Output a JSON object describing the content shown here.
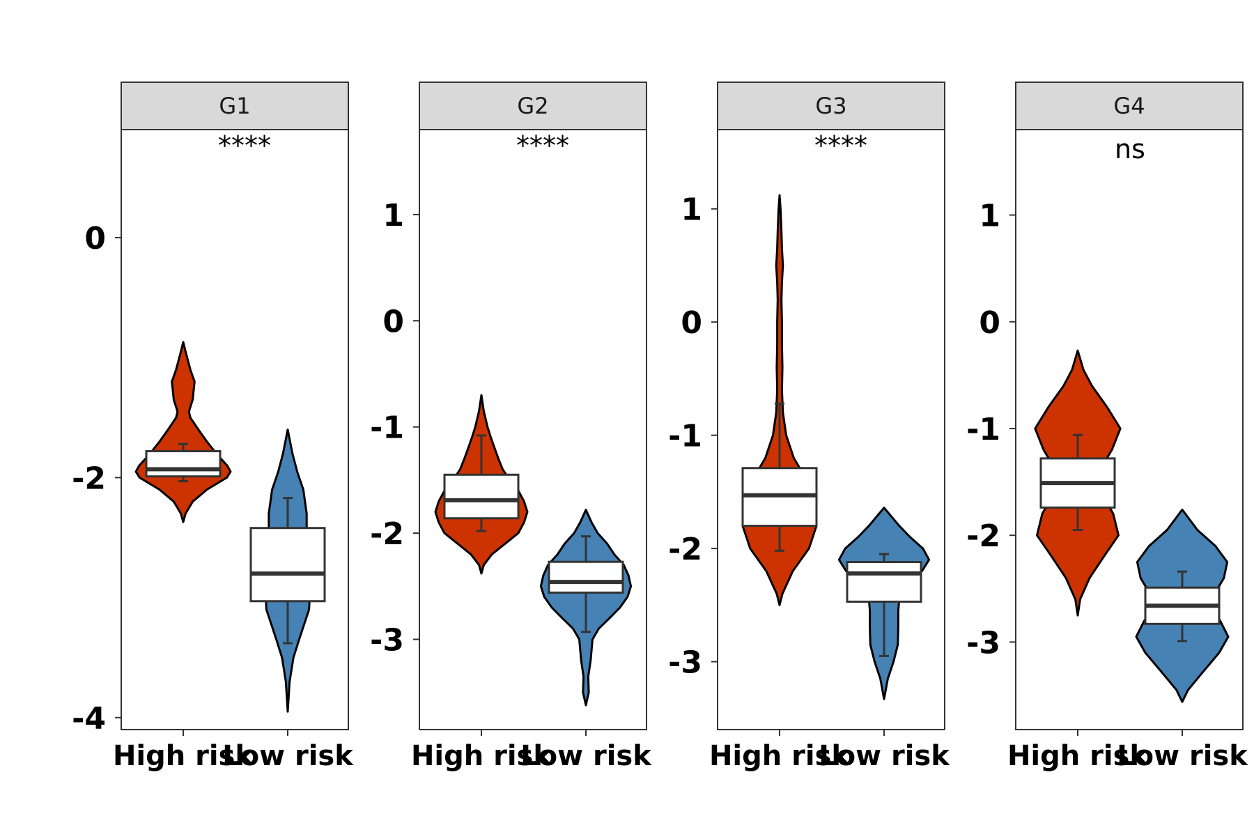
{
  "chart_data": {
    "type": "violin",
    "categories": [
      "High risk",
      "Low risk"
    ],
    "colors": {
      "High risk": "#CC3300",
      "Low risk": "#4682B4"
    },
    "panels": [
      {
        "label": "G1",
        "significance": "****",
        "ylim": [
          -4.1,
          0.9
        ],
        "yticks": [
          0,
          -2,
          -4
        ],
        "groups": [
          {
            "name": "High risk",
            "box": {
              "whisker_low": -2.03,
              "q1": -1.99,
              "median": -1.93,
              "q3": -1.78,
              "whisker_high": -1.72
            },
            "violin_y": [
              -2.37,
              -2.3,
              -2.2,
              -2.1,
              -2.0,
              -1.95,
              -1.9,
              -1.8,
              -1.7,
              -1.6,
              -1.5,
              -1.45,
              -1.35,
              -1.2,
              -1.1,
              -0.95,
              -0.87
            ],
            "violin_w": [
              0.0,
              0.05,
              0.2,
              0.5,
              0.92,
              1.0,
              0.93,
              0.7,
              0.5,
              0.32,
              0.15,
              0.12,
              0.2,
              0.24,
              0.15,
              0.05,
              0.0
            ]
          },
          {
            "name": "Low risk",
            "box": {
              "whisker_low": -3.38,
              "q1": -3.03,
              "median": -2.8,
              "q3": -2.42,
              "whisker_high": -2.17
            },
            "violin_y": [
              -3.95,
              -3.7,
              -3.5,
              -3.35,
              -3.1,
              -2.9,
              -2.7,
              -2.5,
              -2.3,
              -2.1,
              -1.95,
              -1.8,
              -1.6
            ],
            "violin_w": [
              0.0,
              0.04,
              0.12,
              0.24,
              0.45,
              0.48,
              0.42,
              0.4,
              0.4,
              0.33,
              0.2,
              0.1,
              0.0
            ]
          }
        ]
      },
      {
        "label": "G2",
        "significance": "****",
        "ylim": [
          -3.85,
          1.8
        ],
        "yticks": [
          1,
          0,
          -1,
          -2,
          -3
        ],
        "groups": [
          {
            "name": "High risk",
            "box": {
              "whisker_low": -1.98,
              "q1": -1.86,
              "median": -1.69,
              "q3": -1.45,
              "whisker_high": -1.08
            },
            "violin_y": [
              -2.38,
              -2.3,
              -2.2,
              -2.1,
              -2.0,
              -1.9,
              -1.8,
              -1.7,
              -1.6,
              -1.5,
              -1.4,
              -1.3,
              -1.2,
              -1.1,
              -1.0,
              -0.85,
              -0.7
            ],
            "violin_w": [
              0.0,
              0.05,
              0.22,
              0.5,
              0.78,
              0.9,
              0.97,
              0.9,
              0.78,
              0.6,
              0.45,
              0.36,
              0.28,
              0.2,
              0.13,
              0.05,
              0.0
            ]
          },
          {
            "name": "Low risk",
            "box": {
              "whisker_low": -2.93,
              "q1": -2.56,
              "median": -2.46,
              "q3": -2.27,
              "whisker_high": -2.03
            },
            "violin_y": [
              -3.62,
              -3.5,
              -3.35,
              -3.2,
              -3.0,
              -2.9,
              -2.8,
              -2.7,
              -2.6,
              -2.5,
              -2.4,
              -2.3,
              -2.2,
              -2.1,
              -2.0,
              -1.9,
              -1.78
            ],
            "violin_w": [
              0.0,
              0.06,
              0.05,
              0.1,
              0.14,
              0.27,
              0.5,
              0.72,
              0.88,
              0.95,
              0.9,
              0.8,
              0.6,
              0.45,
              0.25,
              0.12,
              0.0
            ]
          }
        ]
      },
      {
        "label": "G3",
        "significance": "****",
        "ylim": [
          -3.6,
          1.7
        ],
        "yticks": [
          1,
          0,
          -1,
          -2,
          -3
        ],
        "groups": [
          {
            "name": "High risk",
            "box": {
              "whisker_low": -2.02,
              "q1": -1.8,
              "median": -1.53,
              "q3": -1.29,
              "whisker_high": -0.72
            },
            "violin_y": [
              -2.5,
              -2.4,
              -2.2,
              -2.0,
              -1.8,
              -1.6,
              -1.4,
              -1.2,
              -1.0,
              -0.8,
              -0.6,
              -0.4,
              -0.2,
              0.0,
              0.2,
              0.35,
              0.5,
              0.65,
              0.8,
              1.0,
              1.12
            ],
            "violin_w": [
              0.0,
              0.06,
              0.28,
              0.62,
              0.78,
              0.75,
              0.58,
              0.3,
              0.14,
              0.07,
              0.05,
              0.06,
              0.05,
              0.05,
              0.04,
              0.05,
              0.07,
              0.05,
              0.04,
              0.02,
              0.0
            ]
          },
          {
            "name": "Low risk",
            "box": {
              "whisker_low": -2.95,
              "q1": -2.47,
              "median": -2.22,
              "q3": -2.12,
              "whisker_high": -2.05
            },
            "violin_y": [
              -3.33,
              -3.15,
              -3.0,
              -2.85,
              -2.7,
              -2.55,
              -2.4,
              -2.3,
              -2.2,
              -2.1,
              -2.0,
              -1.9,
              -1.8,
              -1.64
            ],
            "violin_w": [
              0.0,
              0.08,
              0.2,
              0.29,
              0.3,
              0.3,
              0.33,
              0.5,
              0.8,
              0.95,
              0.82,
              0.55,
              0.32,
              0.0
            ]
          }
        ]
      },
      {
        "label": "G4",
        "significance": "ns",
        "ylim": [
          -3.82,
          1.8
        ],
        "yticks": [
          1,
          0,
          -1,
          -2,
          -3
        ],
        "groups": [
          {
            "name": "High risk",
            "box": {
              "whisker_low": -1.95,
              "q1": -1.74,
              "median": -1.51,
              "q3": -1.28,
              "whisker_high": -1.06
            },
            "violin_y": [
              -2.75,
              -2.6,
              -2.4,
              -2.2,
              -2.0,
              -1.8,
              -1.6,
              -1.4,
              -1.2,
              -1.0,
              -0.8,
              -0.6,
              -0.45,
              -0.27
            ],
            "violin_w": [
              0.0,
              0.05,
              0.25,
              0.55,
              0.86,
              0.75,
              0.5,
              0.45,
              0.72,
              0.9,
              0.62,
              0.3,
              0.12,
              0.0
            ]
          },
          {
            "name": "Low risk",
            "box": {
              "whisker_low": -2.99,
              "q1": -2.83,
              "median": -2.66,
              "q3": -2.49,
              "whisker_high": -2.34
            },
            "violin_y": [
              -3.56,
              -3.45,
              -3.3,
              -3.1,
              -2.95,
              -2.8,
              -2.66,
              -2.55,
              -2.4,
              -2.25,
              -2.1,
              -1.95,
              -1.76
            ],
            "violin_w": [
              0.0,
              0.12,
              0.4,
              0.78,
              0.97,
              0.8,
              0.6,
              0.68,
              0.88,
              0.95,
              0.7,
              0.32,
              0.0
            ]
          }
        ]
      }
    ]
  }
}
